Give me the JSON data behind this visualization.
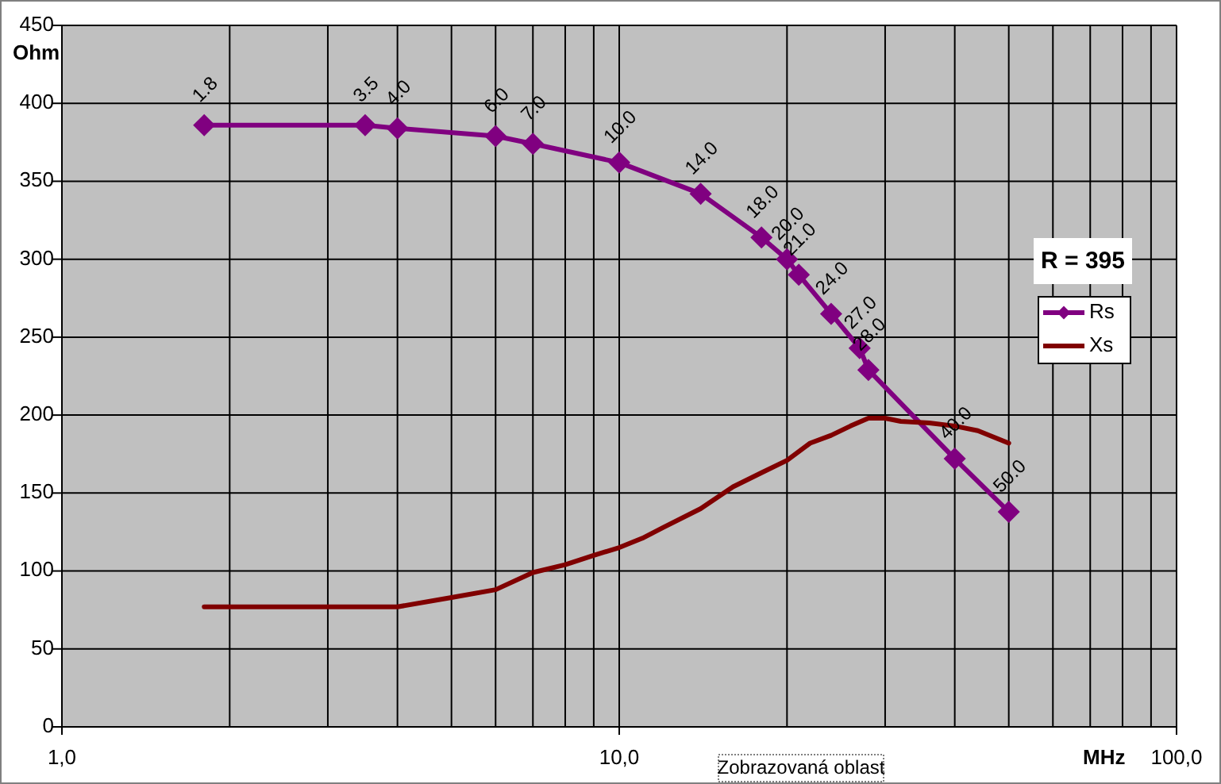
{
  "chart_data": {
    "type": "line",
    "xlabel": "MHz",
    "ylabel": "Ohm",
    "annotations": [
      "R = 395",
      "Zobrazovaná oblast",
      {
        "text": "1.8",
        "x": 1.8,
        "y": 386
      },
      {
        "text": "3.5",
        "x": 3.5,
        "y": 386
      },
      {
        "text": "4.0",
        "x": 4,
        "y": 384
      },
      {
        "text": "6.0",
        "x": 6,
        "y": 379
      },
      {
        "text": "7.0",
        "x": 7,
        "y": 374
      },
      {
        "text": "10.0",
        "x": 10,
        "y": 362
      },
      {
        "text": "14.0",
        "x": 14,
        "y": 342
      },
      {
        "text": "18.0",
        "x": 18,
        "y": 314
      },
      {
        "text": "20.0",
        "x": 20,
        "y": 300
      },
      {
        "text": "21.0",
        "x": 21,
        "y": 290
      },
      {
        "text": "24.0",
        "x": 24,
        "y": 265
      },
      {
        "text": "27.0",
        "x": 27,
        "y": 243
      },
      {
        "text": "28.0",
        "x": 28,
        "y": 229
      },
      {
        "text": "40.0",
        "x": 40,
        "y": 172
      },
      {
        "text": "50.0",
        "x": 50,
        "y": 138
      }
    ],
    "log": "x",
    "xlim": [
      1,
      100
    ],
    "xticks": [
      {
        "value": 1,
        "label": "1,0"
      },
      {
        "value": 2,
        "label": null
      },
      {
        "value": 3,
        "label": null
      },
      {
        "value": 4,
        "label": null
      },
      {
        "value": 5,
        "label": null
      },
      {
        "value": 6,
        "label": null
      },
      {
        "value": 7,
        "label": null
      },
      {
        "value": 8,
        "label": null
      },
      {
        "value": 9,
        "label": null
      },
      {
        "value": 10,
        "label": "10,0"
      },
      {
        "value": 20,
        "label": null
      },
      {
        "value": 30,
        "label": null
      },
      {
        "value": 40,
        "label": null
      },
      {
        "value": 50,
        "label": null
      },
      {
        "value": 60,
        "label": null
      },
      {
        "value": 70,
        "label": null
      },
      {
        "value": 80,
        "label": null
      },
      {
        "value": 90,
        "label": null
      },
      {
        "value": 100,
        "label": "100,0"
      }
    ],
    "ylim": [
      0,
      450
    ],
    "yticks": [
      0,
      50,
      100,
      150,
      200,
      250,
      300,
      350,
      400,
      450
    ],
    "grid": true,
    "legend": "right",
    "marker": "diamond",
    "line_style": "solid",
    "series": [
      {
        "name": "Rs",
        "color": "#800080",
        "x": [
          1.8,
          3.5,
          4,
          6,
          7,
          10,
          14,
          18,
          20,
          21,
          24,
          27,
          28,
          40,
          50
        ],
        "values": [
          386,
          386,
          384,
          379,
          374,
          362,
          342,
          314,
          300,
          290,
          265,
          243,
          229,
          172,
          138
        ]
      },
      {
        "name": "Xs",
        "color": "#800000",
        "marker": "none",
        "x": [
          1.8,
          3.5,
          4,
          5,
          6,
          7,
          8,
          9,
          10,
          11,
          12,
          14,
          16,
          18,
          20,
          22,
          24,
          26,
          28,
          30,
          32,
          36,
          40,
          44,
          50
        ],
        "values": [
          77,
          77,
          77,
          83,
          88,
          99,
          104,
          110,
          115,
          121,
          128,
          140,
          154,
          163,
          171,
          182,
          187,
          193,
          198,
          198,
          196,
          195,
          193,
          190,
          182
        ]
      }
    ]
  }
}
